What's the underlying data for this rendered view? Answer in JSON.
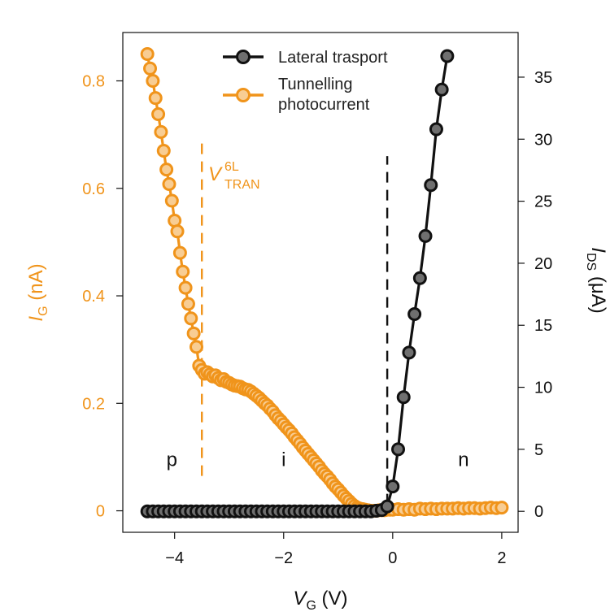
{
  "chart_data": {
    "type": "line",
    "title": "",
    "xlabel": {
      "main": "V",
      "sub": "G",
      "unit": " (V)"
    },
    "ylabel_left": {
      "main": "I",
      "sub": "G",
      "unit": " (nA)"
    },
    "ylabel_right": {
      "main": "I",
      "sub": "DS",
      "unit": " (μA)"
    },
    "xlim": [
      -4.95,
      2.3
    ],
    "ylim_left": [
      -0.04,
      0.89
    ],
    "ylim_right": [
      -1.69,
      38.6
    ],
    "x_ticks": [
      -4,
      -2,
      0,
      2
    ],
    "x_tick_labels": [
      "−4",
      "−2",
      "0",
      "2"
    ],
    "y_left_ticks": [
      0,
      0.2,
      0.4,
      0.6,
      0.8
    ],
    "y_left_tick_labels": [
      "0",
      "0.2",
      "0.4",
      "0.6",
      "0.8"
    ],
    "y_right_ticks": [
      0,
      5,
      10,
      15,
      20,
      25,
      30,
      35
    ],
    "y_right_tick_labels": [
      "0",
      "5",
      "10",
      "15",
      "20",
      "25",
      "30",
      "35"
    ],
    "annotation": {
      "main": "V",
      "sub": "TRAN",
      "sup": "6L",
      "x": -3.5
    },
    "vlines": [
      {
        "x": -3.5,
        "color": "#f0941b",
        "ymin": 0.065,
        "ymax": 0.685
      },
      {
        "x": -0.1,
        "color": "#111111",
        "ymin": 0.012,
        "ymax": 0.66
      }
    ],
    "region_labels": [
      {
        "text": "p",
        "x": -4.05
      },
      {
        "text": "i",
        "x": -2.0
      },
      {
        "text": "n",
        "x": 1.3
      }
    ],
    "region_label_y": 0.083,
    "legend": {
      "position": "top-center"
    },
    "series": [
      {
        "name": "Lateral trasport",
        "axis": "right",
        "color": "#111111",
        "fill": "#6f6f6f",
        "x": [
          -4.5,
          -4.4,
          -4.3,
          -4.2,
          -4.1,
          -4.0,
          -3.9,
          -3.8,
          -3.7,
          -3.6,
          -3.5,
          -3.4,
          -3.3,
          -3.2,
          -3.1,
          -3.0,
          -2.9,
          -2.8,
          -2.7,
          -2.6,
          -2.5,
          -2.4,
          -2.3,
          -2.2,
          -2.1,
          -2.0,
          -1.9,
          -1.8,
          -1.7,
          -1.6,
          -1.5,
          -1.4,
          -1.3,
          -1.2,
          -1.1,
          -1.0,
          -0.9,
          -0.8,
          -0.7,
          -0.6,
          -0.5,
          -0.4,
          -0.3,
          -0.2,
          -0.1,
          0.0,
          0.1,
          0.2,
          0.3,
          0.4,
          0.5,
          0.6,
          0.7,
          0.8,
          0.9,
          1.0
        ],
        "y": [
          0,
          0,
          0,
          0,
          0,
          0,
          0,
          0,
          0,
          0,
          0,
          0,
          0,
          0,
          0,
          0,
          0,
          0,
          0,
          0,
          0,
          0,
          0,
          0,
          0,
          0,
          0,
          0,
          0,
          0,
          0,
          0,
          0,
          0,
          0,
          0,
          0,
          0,
          0,
          0,
          0,
          0,
          0.05,
          0.1,
          0.4,
          2.0,
          5.0,
          9.2,
          12.8,
          15.9,
          18.8,
          22.2,
          26.3,
          30.8,
          34.0,
          36.7
        ]
      },
      {
        "name": "Tunnelling\nphotocurrent",
        "axis": "left",
        "color": "#f0941b",
        "fill": "#f8cd93",
        "x": [
          -4.5,
          -4.45,
          -4.4,
          -4.35,
          -4.3,
          -4.25,
          -4.2,
          -4.15,
          -4.1,
          -4.05,
          -4.0,
          -3.95,
          -3.9,
          -3.85,
          -3.8,
          -3.75,
          -3.7,
          -3.65,
          -3.6,
          -3.55,
          -3.5,
          -3.45,
          -3.4,
          -3.35,
          -3.3,
          -3.25,
          -3.2,
          -3.15,
          -3.1,
          -3.05,
          -3.0,
          -2.95,
          -2.9,
          -2.85,
          -2.8,
          -2.75,
          -2.7,
          -2.65,
          -2.6,
          -2.55,
          -2.5,
          -2.45,
          -2.4,
          -2.35,
          -2.3,
          -2.25,
          -2.2,
          -2.15,
          -2.1,
          -2.05,
          -2.0,
          -1.95,
          -1.9,
          -1.85,
          -1.8,
          -1.75,
          -1.7,
          -1.65,
          -1.6,
          -1.55,
          -1.5,
          -1.45,
          -1.4,
          -1.35,
          -1.3,
          -1.25,
          -1.2,
          -1.15,
          -1.1,
          -1.05,
          -1.0,
          -0.95,
          -0.9,
          -0.85,
          -0.8,
          -0.75,
          -0.7,
          -0.65,
          -0.6,
          -0.55,
          -0.5,
          -0.45,
          -0.4,
          -0.35,
          -0.3,
          -0.25,
          -0.2,
          -0.15,
          -0.1,
          -0.05,
          0.0,
          0.1,
          0.2,
          0.3,
          0.4,
          0.5,
          0.6,
          0.7,
          0.8,
          0.9,
          1.0,
          1.1,
          1.2,
          1.3,
          1.4,
          1.5,
          1.6,
          1.7,
          1.8,
          1.9,
          2.0
        ],
        "y": [
          0.85,
          0.823,
          0.8,
          0.768,
          0.738,
          0.705,
          0.67,
          0.635,
          0.608,
          0.577,
          0.54,
          0.52,
          0.48,
          0.445,
          0.415,
          0.385,
          0.358,
          0.33,
          0.305,
          0.27,
          0.262,
          0.255,
          0.258,
          0.254,
          0.25,
          0.252,
          0.247,
          0.243,
          0.245,
          0.24,
          0.238,
          0.235,
          0.233,
          0.232,
          0.231,
          0.228,
          0.226,
          0.225,
          0.222,
          0.218,
          0.214,
          0.21,
          0.205,
          0.2,
          0.196,
          0.19,
          0.185,
          0.178,
          0.172,
          0.167,
          0.161,
          0.155,
          0.15,
          0.144,
          0.137,
          0.131,
          0.125,
          0.118,
          0.112,
          0.106,
          0.1,
          0.094,
          0.088,
          0.082,
          0.075,
          0.069,
          0.064,
          0.058,
          0.051,
          0.045,
          0.04,
          0.034,
          0.028,
          0.023,
          0.018,
          0.013,
          0.009,
          0.006,
          0.004,
          0.003,
          0.002,
          0.001,
          0.0,
          0.0,
          0.0,
          0.001,
          0.001,
          0.001,
          0.002,
          0.002,
          0.002,
          0.003,
          0.002,
          0.003,
          0.002,
          0.004,
          0.003,
          0.004,
          0.003,
          0.004,
          0.004,
          0.004,
          0.005,
          0.004,
          0.005,
          0.005,
          0.004,
          0.005,
          0.006,
          0.005,
          0.006
        ]
      }
    ]
  },
  "colors": {
    "orange": "#f0941b",
    "orange_light": "#f8cd93",
    "black": "#111111",
    "gray": "#6f6f6f"
  }
}
